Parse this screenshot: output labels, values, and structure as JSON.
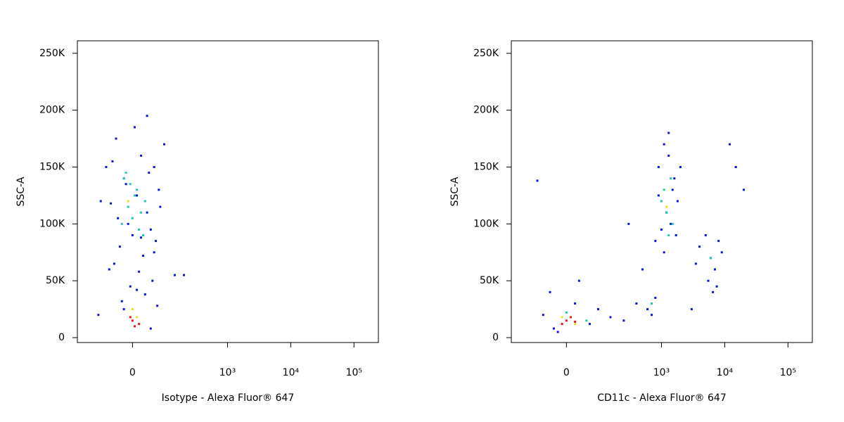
{
  "chart_data": [
    {
      "type": "scatter",
      "xlabel": "Isotype - Alexa Fluor® 647",
      "ylabel": "SSC-A",
      "xscale": "biexponential",
      "x_biex_width": 63,
      "xlim": [
        -230,
        243000
      ],
      "ylim": [
        -4300,
        261000
      ],
      "xticks": [
        0,
        {
          "value": 1000,
          "label": "10³"
        },
        {
          "value": 10000,
          "label": "10⁴"
        },
        {
          "value": 100000,
          "label": "10⁵"
        }
      ],
      "yticks": [
        0,
        {
          "value": 50000,
          "label": "50K"
        },
        {
          "value": 100000,
          "label": "100K"
        },
        {
          "value": 150000,
          "label": "150K"
        },
        {
          "value": 200000,
          "label": "200K"
        },
        {
          "value": 250000,
          "label": "250K"
        }
      ],
      "series": [
        {
          "color": "#0a14d8",
          "x": [
            -40,
            20,
            55,
            -20,
            70,
            10,
            -55,
            35,
            -10,
            45,
            0,
            60,
            -30,
            25,
            -45,
            15,
            50,
            -5,
            30,
            -25,
            65,
            5,
            -50,
            40,
            -15,
            75,
            -35,
            20,
            55,
            -60,
            10,
            90,
            -70,
            140,
            -90,
            200,
            -100,
            35,
            -20,
            45
          ],
          "y": [
            175000,
            160000,
            150000,
            140000,
            130000,
            125000,
            118000,
            110000,
            100000,
            95000,
            90000,
            85000,
            80000,
            72000,
            65000,
            58000,
            50000,
            45000,
            38000,
            32000,
            28000,
            185000,
            155000,
            145000,
            135000,
            115000,
            105000,
            88000,
            75000,
            60000,
            42000,
            170000,
            150000,
            55000,
            120000,
            55000,
            20000,
            195000,
            25000,
            8000
          ]
        },
        {
          "color": "#1fc8b0",
          "x": [
            -20,
            10,
            30,
            -10,
            20,
            0,
            -25,
            15,
            5,
            -5,
            25,
            -15
          ],
          "y": [
            140000,
            130000,
            120000,
            115000,
            110000,
            105000,
            100000,
            95000,
            125000,
            135000,
            90000,
            145000
          ]
        },
        {
          "color": "#e8e020",
          "x": [
            0,
            10,
            -10
          ],
          "y": [
            25000,
            18000,
            120000
          ]
        },
        {
          "color": "#e81818",
          "x": [
            0,
            15,
            -5,
            5
          ],
          "y": [
            15000,
            12000,
            18000,
            10000
          ]
        }
      ]
    },
    {
      "type": "scatter",
      "xlabel": "CD11c - Alexa Fluor® 647",
      "ylabel": "SSC-A",
      "xscale": "biexponential",
      "x_biex_width": 63,
      "xlim": [
        -230,
        243000
      ],
      "ylim": [
        -4300,
        261000
      ],
      "xticks": [
        0,
        {
          "value": 1000,
          "label": "10³"
        },
        {
          "value": 10000,
          "label": "10⁴"
        },
        {
          "value": 100000,
          "label": "10⁵"
        }
      ],
      "yticks": [
        0,
        {
          "value": 50000,
          "label": "50K"
        },
        {
          "value": 100000,
          "label": "100K"
        },
        {
          "value": 150000,
          "label": "150K"
        },
        {
          "value": 200000,
          "label": "200K"
        },
        {
          "value": 250000,
          "label": "250K"
        }
      ],
      "series": [
        {
          "color": "#0a14d8",
          "x": [
            -60,
            -30,
            20,
            60,
            -40,
            90,
            150,
            250,
            400,
            600,
            800,
            700,
            900,
            1100,
            1300,
            1500,
            1800,
            1200,
            1000,
            800,
            1400,
            1600,
            2000,
            900,
            1100,
            1700,
            4000,
            5000,
            6000,
            7000,
            8000,
            5500,
            6500,
            9000,
            3500,
            7500,
            12000,
            20000,
            15000,
            3000,
            -80,
            30,
            500,
            300,
            1300,
            -20
          ],
          "y": [
            20000,
            8000,
            30000,
            12000,
            40000,
            25000,
            18000,
            15000,
            30000,
            25000,
            35000,
            20000,
            150000,
            170000,
            160000,
            130000,
            120000,
            110000,
            95000,
            85000,
            100000,
            140000,
            150000,
            125000,
            75000,
            90000,
            80000,
            90000,
            70000,
            60000,
            85000,
            50000,
            40000,
            75000,
            65000,
            45000,
            170000,
            130000,
            150000,
            25000,
            138000,
            50000,
            60000,
            100000,
            180000,
            5000
          ]
        },
        {
          "color": "#1fc8b0",
          "x": [
            1000,
            1200,
            1400,
            1500,
            1100,
            1300,
            6000,
            50,
            0,
            700
          ],
          "y": [
            120000,
            110000,
            140000,
            100000,
            130000,
            90000,
            70000,
            15000,
            22000,
            30000
          ]
        },
        {
          "color": "#e8e020",
          "x": [
            1200,
            -10,
            20
          ],
          "y": [
            115000,
            18000,
            12000
          ]
        },
        {
          "color": "#e81818",
          "x": [
            0,
            -10,
            20,
            10
          ],
          "y": [
            15000,
            12000,
            14000,
            18000
          ]
        }
      ]
    }
  ]
}
